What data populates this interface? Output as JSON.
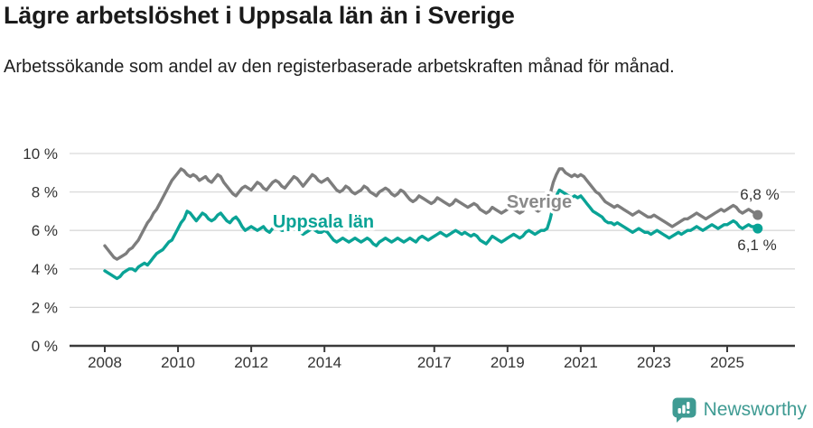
{
  "header": {
    "title": "Lägre arbetslöshet i Uppsala län än i Sverige",
    "subtitle": "Arbetssökande som andel av den registerbaserade arbetskraften månad för månad."
  },
  "chart_data": {
    "type": "line",
    "unit": "%",
    "x_start_year": 2008,
    "months_per_point": 1,
    "x_ticks": [
      2008,
      2010,
      2012,
      2014,
      2017,
      2019,
      2021,
      2023,
      2025
    ],
    "y_ticks": [
      0,
      2,
      4,
      6,
      8,
      10
    ],
    "y_tick_suffix": " %",
    "ylim": [
      0,
      10
    ],
    "grid": true,
    "legend_position": "inline-labels",
    "colors": {
      "grid": "#d9d9d9",
      "axis": "#3a3a3a",
      "tick_text": "#333333"
    },
    "series": [
      {
        "name": "Sverige",
        "color": "#7d7d7d",
        "label_color": "#8a8a8a",
        "end_label": "6,8 %",
        "end_value": 6.8,
        "values": [
          5.2,
          5.0,
          4.8,
          4.6,
          4.5,
          4.6,
          4.7,
          4.8,
          5.0,
          5.1,
          5.3,
          5.5,
          5.8,
          6.1,
          6.4,
          6.6,
          6.9,
          7.1,
          7.4,
          7.7,
          8.0,
          8.3,
          8.6,
          8.8,
          9.0,
          9.2,
          9.1,
          8.9,
          8.8,
          8.9,
          8.8,
          8.6,
          8.7,
          8.8,
          8.6,
          8.5,
          8.7,
          8.9,
          8.8,
          8.5,
          8.3,
          8.1,
          7.9,
          7.8,
          8.0,
          8.2,
          8.3,
          8.2,
          8.1,
          8.3,
          8.5,
          8.4,
          8.2,
          8.1,
          8.3,
          8.5,
          8.6,
          8.5,
          8.3,
          8.2,
          8.4,
          8.6,
          8.8,
          8.7,
          8.5,
          8.3,
          8.5,
          8.7,
          8.9,
          8.8,
          8.6,
          8.5,
          8.6,
          8.7,
          8.5,
          8.3,
          8.1,
          8.0,
          8.1,
          8.3,
          8.2,
          8.0,
          7.9,
          8.0,
          8.1,
          8.3,
          8.2,
          8.0,
          7.9,
          7.8,
          8.0,
          8.1,
          8.2,
          8.1,
          7.9,
          7.8,
          7.9,
          8.1,
          8.0,
          7.8,
          7.6,
          7.5,
          7.6,
          7.8,
          7.7,
          7.6,
          7.5,
          7.4,
          7.5,
          7.7,
          7.6,
          7.5,
          7.4,
          7.3,
          7.4,
          7.6,
          7.5,
          7.4,
          7.3,
          7.2,
          7.3,
          7.4,
          7.3,
          7.1,
          7.0,
          6.9,
          7.0,
          7.2,
          7.1,
          7.0,
          6.9,
          7.0,
          7.1,
          7.2,
          7.1,
          7.0,
          6.9,
          7.0,
          7.2,
          7.3,
          7.2,
          7.1,
          7.0,
          7.1,
          7.3,
          7.4,
          7.9,
          8.5,
          8.9,
          9.2,
          9.2,
          9.0,
          8.9,
          8.8,
          8.9,
          8.8,
          8.9,
          8.8,
          8.6,
          8.4,
          8.2,
          8.0,
          7.9,
          7.7,
          7.5,
          7.4,
          7.3,
          7.2,
          7.3,
          7.2,
          7.1,
          7.0,
          6.9,
          6.8,
          6.9,
          7.0,
          6.9,
          6.8,
          6.7,
          6.7,
          6.8,
          6.7,
          6.6,
          6.5,
          6.4,
          6.3,
          6.2,
          6.3,
          6.4,
          6.5,
          6.6,
          6.6,
          6.7,
          6.8,
          6.9,
          6.8,
          6.7,
          6.6,
          6.7,
          6.8,
          6.9,
          7.0,
          7.1,
          7.0,
          7.1,
          7.2,
          7.3,
          7.2,
          7.0,
          6.9,
          7.0,
          7.1,
          7.0,
          6.9,
          6.8
        ]
      },
      {
        "name": "Uppsala län",
        "color": "#0aa396",
        "label_color": "#0aa396",
        "end_label": "6,1 %",
        "end_value": 6.1,
        "values": [
          3.9,
          3.8,
          3.7,
          3.6,
          3.5,
          3.6,
          3.8,
          3.9,
          4.0,
          4.0,
          3.9,
          4.1,
          4.2,
          4.3,
          4.2,
          4.4,
          4.6,
          4.8,
          4.9,
          5.0,
          5.2,
          5.4,
          5.5,
          5.8,
          6.1,
          6.4,
          6.6,
          7.0,
          6.9,
          6.7,
          6.5,
          6.7,
          6.9,
          6.8,
          6.6,
          6.5,
          6.6,
          6.8,
          6.9,
          6.7,
          6.5,
          6.4,
          6.6,
          6.7,
          6.5,
          6.2,
          6.0,
          6.1,
          6.2,
          6.1,
          6.0,
          6.1,
          6.2,
          6.0,
          5.9,
          6.1,
          6.2,
          6.1,
          6.0,
          6.0,
          6.1,
          6.2,
          6.1,
          6.0,
          5.9,
          5.8,
          5.9,
          6.0,
          6.1,
          6.0,
          5.9,
          5.9,
          6.0,
          5.9,
          5.7,
          5.5,
          5.4,
          5.5,
          5.6,
          5.5,
          5.4,
          5.5,
          5.6,
          5.5,
          5.4,
          5.5,
          5.6,
          5.5,
          5.3,
          5.2,
          5.4,
          5.5,
          5.6,
          5.5,
          5.4,
          5.5,
          5.6,
          5.5,
          5.4,
          5.5,
          5.6,
          5.5,
          5.4,
          5.6,
          5.7,
          5.6,
          5.5,
          5.6,
          5.7,
          5.8,
          5.9,
          5.8,
          5.7,
          5.8,
          5.9,
          6.0,
          5.9,
          5.8,
          5.9,
          5.8,
          5.7,
          5.8,
          5.7,
          5.5,
          5.4,
          5.3,
          5.5,
          5.7,
          5.6,
          5.5,
          5.4,
          5.5,
          5.6,
          5.7,
          5.8,
          5.7,
          5.6,
          5.7,
          5.9,
          6.0,
          5.9,
          5.8,
          5.9,
          6.0,
          6.0,
          6.1,
          6.6,
          7.3,
          7.8,
          8.1,
          8.0,
          7.9,
          7.8,
          7.7,
          7.8,
          7.7,
          7.8,
          7.6,
          7.4,
          7.2,
          7.0,
          6.9,
          6.8,
          6.7,
          6.5,
          6.4,
          6.4,
          6.3,
          6.4,
          6.3,
          6.2,
          6.1,
          6.0,
          5.9,
          6.0,
          6.1,
          6.0,
          5.9,
          5.9,
          5.8,
          5.9,
          6.0,
          5.9,
          5.8,
          5.7,
          5.6,
          5.7,
          5.8,
          5.9,
          5.8,
          5.9,
          6.0,
          6.0,
          6.1,
          6.2,
          6.1,
          6.0,
          6.1,
          6.2,
          6.3,
          6.2,
          6.1,
          6.2,
          6.3,
          6.3,
          6.4,
          6.5,
          6.4,
          6.2,
          6.1,
          6.2,
          6.3,
          6.2,
          6.2,
          6.1
        ]
      }
    ]
  },
  "footer": {
    "brand": "Newsworthy",
    "brand_color": "#3f9b93",
    "logo_icon": "newsworthy-speech-bubble-chart-icon"
  }
}
